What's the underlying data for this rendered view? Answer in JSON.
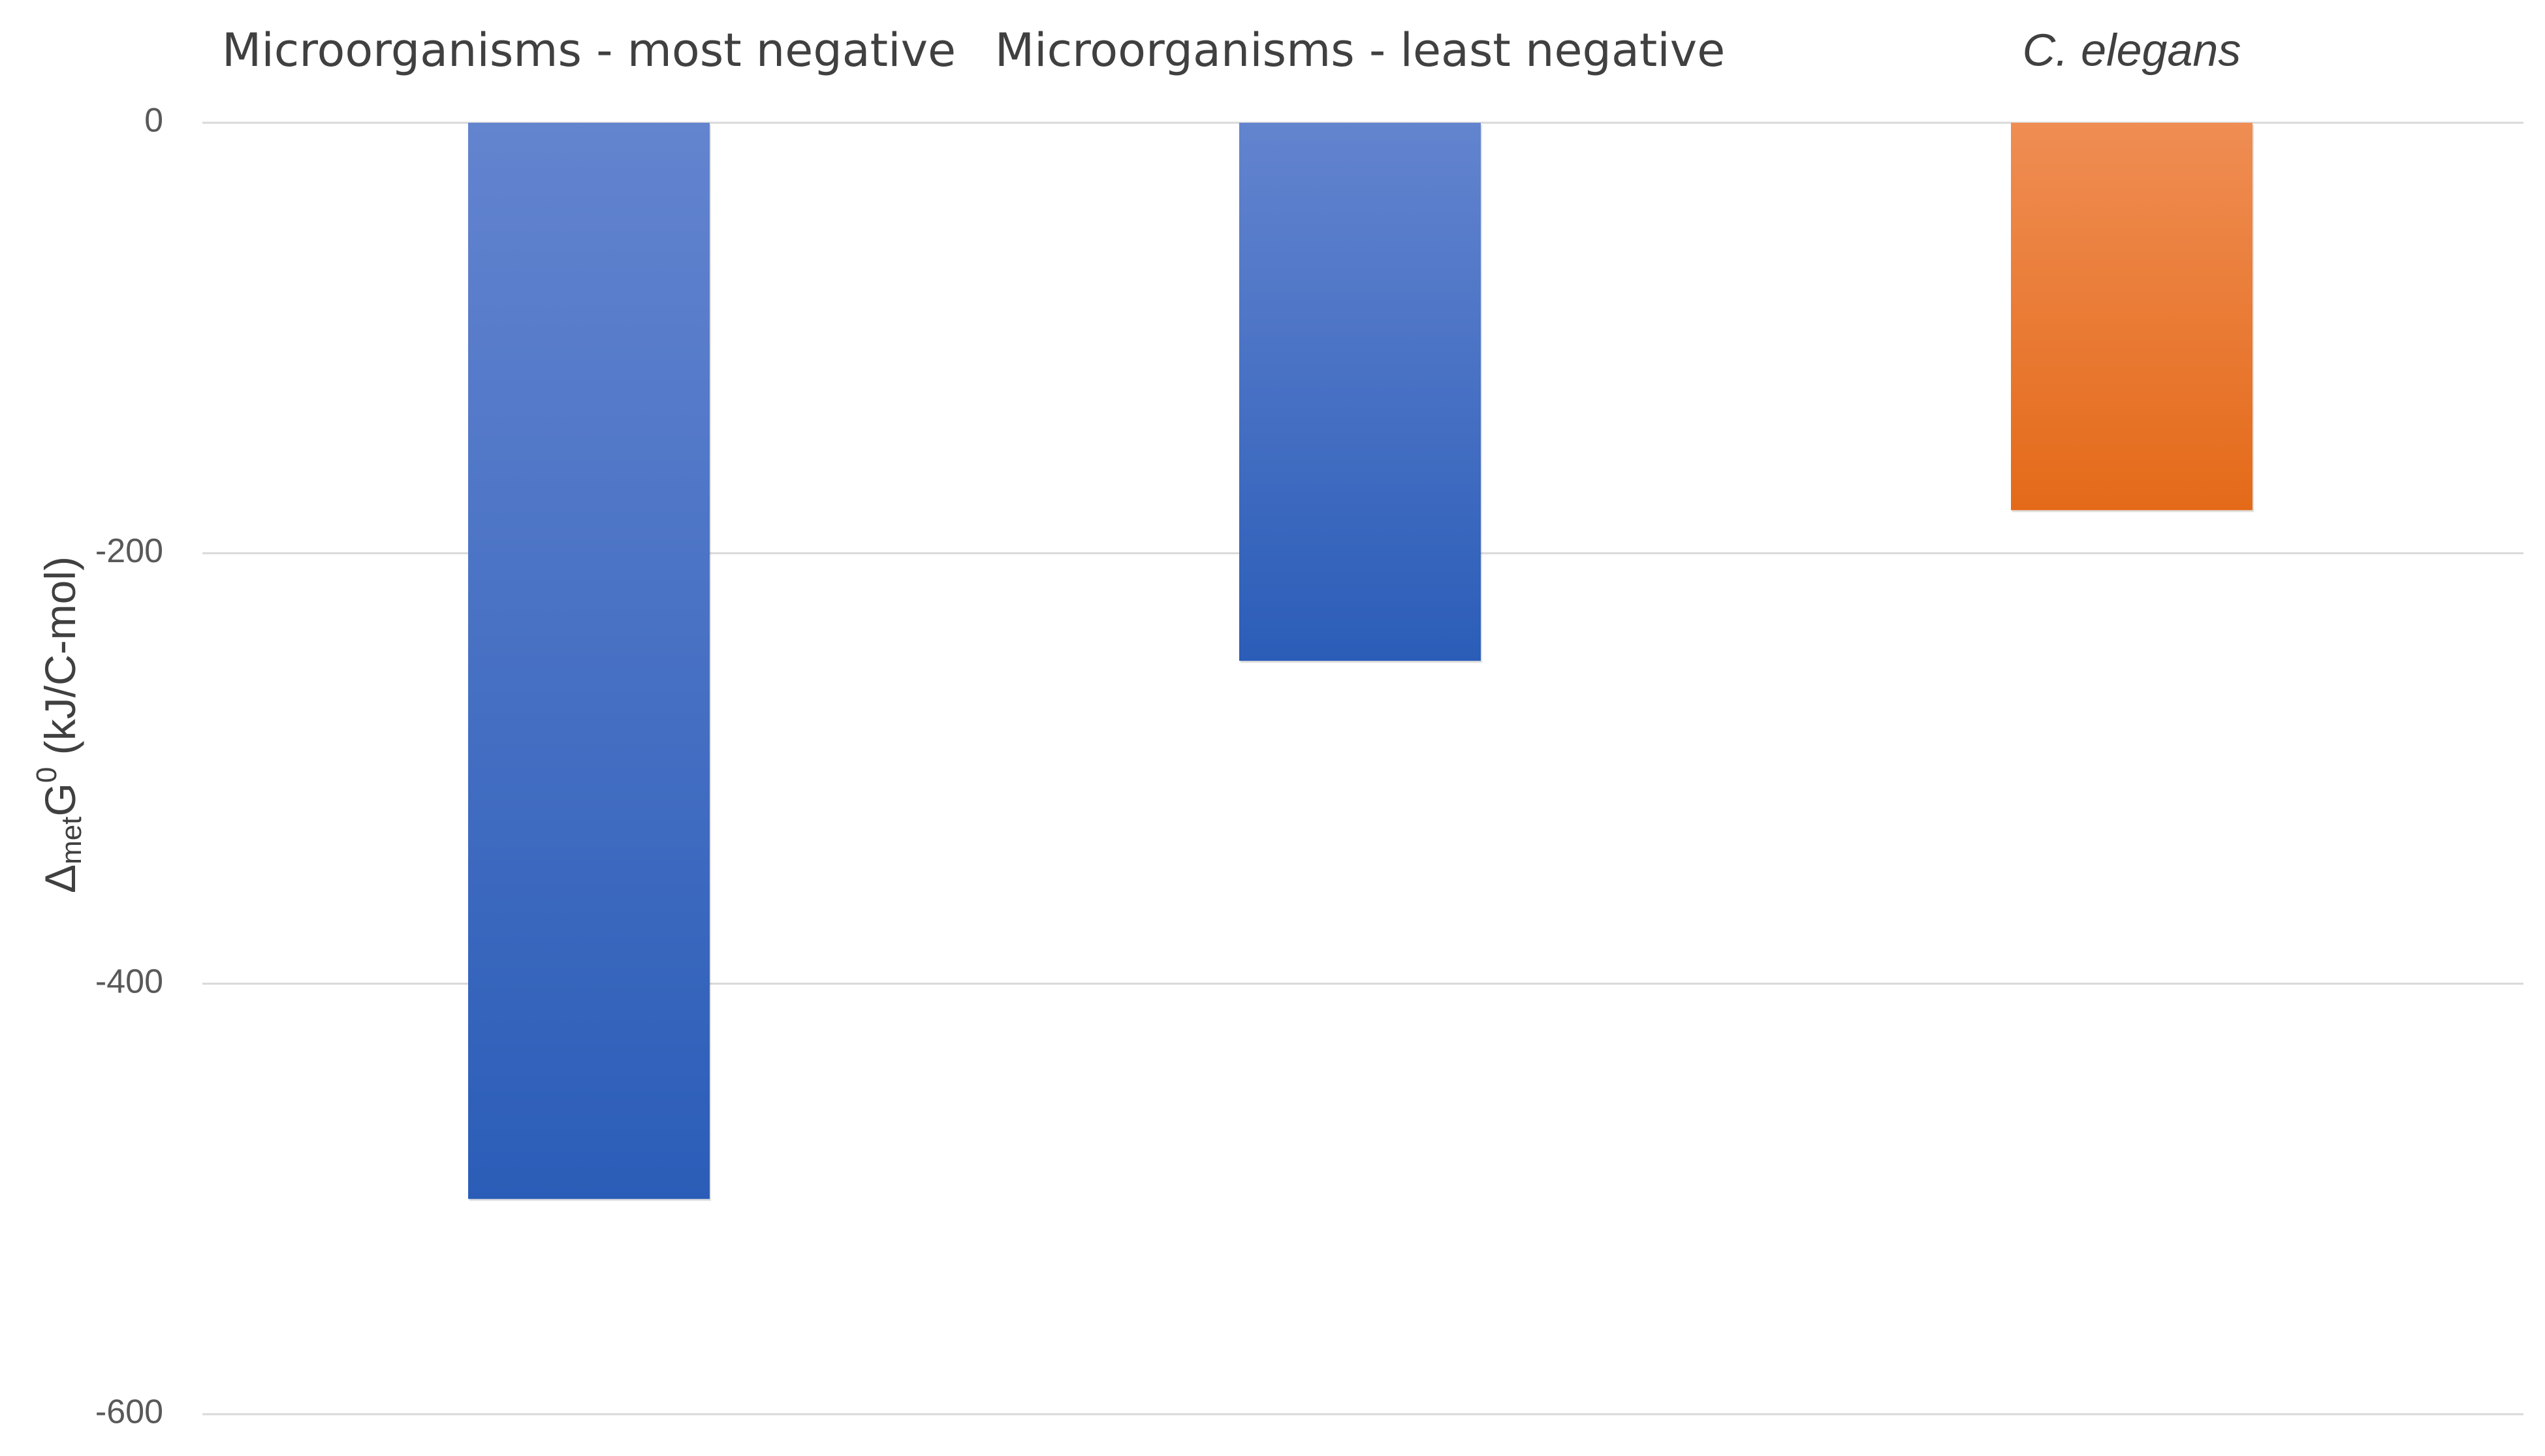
{
  "chart_data": {
    "type": "bar",
    "title": "",
    "categories": [
      "Microorganisms - most negative",
      "Microorganisms - least negative",
      "C. elegans"
    ],
    "category_italic": [
      false,
      false,
      true
    ],
    "values": [
      -500,
      -250,
      -180
    ],
    "bar_colors": [
      {
        "top": "#6384cf",
        "bottom": "#2b5db8"
      },
      {
        "top": "#6384cf",
        "bottom": "#2b5db8"
      },
      {
        "top": "#ef8d53",
        "bottom": "#e46a19"
      }
    ],
    "ylabel": {
      "prefix": "Δ",
      "subscript": "met",
      "main": "G",
      "superscript": "0",
      "suffix": " (kJ/C-mol)"
    },
    "ylim": [
      -600,
      0
    ],
    "yticks": [
      0,
      -200,
      -400,
      -600
    ],
    "ytick_labels": [
      "0",
      "-200",
      "-400",
      "-600"
    ],
    "grid": true,
    "category_labels_position": "top"
  }
}
